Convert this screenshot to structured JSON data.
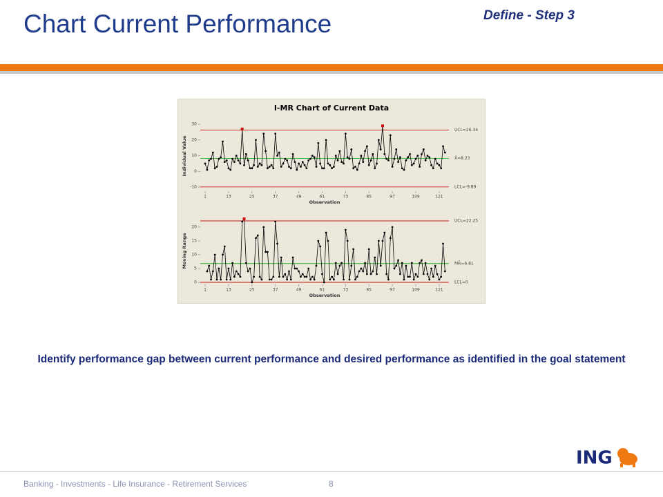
{
  "header": {
    "title": "Chart Current Performance",
    "step": "Define - Step 3"
  },
  "chart_data": [
    {
      "type": "line",
      "title": "I-MR Chart of Current Data",
      "ylabel": "Individual Value",
      "xlabel": "Observation",
      "x": [
        1,
        2,
        3,
        4,
        5,
        6,
        7,
        8,
        9,
        10,
        11,
        12,
        13,
        14,
        15,
        16,
        17,
        18,
        19,
        20,
        21,
        22,
        23,
        24,
        25,
        26,
        27,
        28,
        29,
        30,
        31,
        32,
        33,
        34,
        35,
        36,
        37,
        38,
        39,
        40,
        41,
        42,
        43,
        44,
        45,
        46,
        47,
        48,
        49,
        50,
        51,
        52,
        53,
        54,
        55,
        56,
        57,
        58,
        59,
        60,
        61,
        62,
        63,
        64,
        65,
        66,
        67,
        68,
        69,
        70,
        71,
        72,
        73,
        74,
        75,
        76,
        77,
        78,
        79,
        80,
        81,
        82,
        83,
        84,
        85,
        86,
        87,
        88,
        89,
        90,
        91,
        92,
        93,
        94,
        95,
        96,
        97,
        98,
        99,
        100,
        101,
        102,
        103,
        104,
        105,
        106,
        107,
        108,
        109,
        110,
        111,
        112,
        113,
        114,
        115,
        116,
        117,
        118,
        119,
        120,
        121,
        122,
        123,
        124
      ],
      "series": [
        {
          "color": "#000000",
          "values": [
            5,
            1,
            7,
            8,
            12,
            2,
            3,
            8,
            9,
            19,
            6,
            7,
            2,
            1,
            8,
            6,
            10,
            7,
            5,
            27,
            4,
            11,
            7,
            2,
            2,
            4,
            20,
            3,
            5,
            4,
            24,
            13,
            2,
            3,
            4,
            2,
            24,
            10,
            12,
            3,
            5,
            8,
            7,
            3,
            2,
            11,
            6,
            1,
            5,
            3,
            6,
            4,
            2,
            7,
            8,
            10,
            9,
            3,
            18,
            5,
            2,
            2,
            20,
            5,
            4,
            2,
            3,
            10,
            7,
            13,
            6,
            5,
            24,
            9,
            8,
            14,
            2,
            3,
            1,
            5,
            10,
            6,
            13,
            16,
            4,
            7,
            11,
            2,
            5,
            20,
            14,
            29,
            11,
            8,
            7,
            23,
            3,
            8,
            14,
            6,
            9,
            2,
            1,
            7,
            9,
            11,
            4,
            5,
            8,
            10,
            3,
            11,
            14,
            7,
            10,
            9,
            4,
            2,
            8,
            5,
            4,
            2,
            16,
            12
          ]
        }
      ],
      "xlim": [
        -1.5,
        126
      ],
      "xticks": [
        1,
        13,
        25,
        37,
        49,
        61,
        73,
        85,
        97,
        109,
        121
      ],
      "ylim": [
        -12.6,
        32.2
      ],
      "yticks": [
        -10,
        0,
        10,
        20,
        30
      ],
      "control_lines": [
        {
          "label": "UCL=26.34",
          "value": 26.34,
          "color": "#d01010"
        },
        {
          "label": "X̄=8.23",
          "value": 8.23,
          "color": "#20b020"
        },
        {
          "label": "LCL=-9.89",
          "value": -9.89,
          "color": "#d01010"
        }
      ]
    },
    {
      "type": "line",
      "ylabel": "Moving Range",
      "xlabel": "Observation",
      "x": [
        1,
        2,
        3,
        4,
        5,
        6,
        7,
        8,
        9,
        10,
        11,
        12,
        13,
        14,
        15,
        16,
        17,
        18,
        19,
        20,
        21,
        22,
        23,
        24,
        25,
        26,
        27,
        28,
        29,
        30,
        31,
        32,
        33,
        34,
        35,
        36,
        37,
        38,
        39,
        40,
        41,
        42,
        43,
        44,
        45,
        46,
        47,
        48,
        49,
        50,
        51,
        52,
        53,
        54,
        55,
        56,
        57,
        58,
        59,
        60,
        61,
        62,
        63,
        64,
        65,
        66,
        67,
        68,
        69,
        70,
        71,
        72,
        73,
        74,
        75,
        76,
        77,
        78,
        79,
        80,
        81,
        82,
        83,
        84,
        85,
        86,
        87,
        88,
        89,
        90,
        91,
        92,
        93,
        94,
        95,
        96,
        97,
        98,
        99,
        100,
        101,
        102,
        103,
        104,
        105,
        106,
        107,
        108,
        109,
        110,
        111,
        112,
        113,
        114,
        115,
        116,
        117,
        118,
        119,
        120,
        121,
        122,
        123,
        124
      ],
      "series": [
        {
          "color": "#000000",
          "values": [
            null,
            4,
            6,
            1,
            4,
            10,
            1,
            5,
            1,
            10,
            13,
            1,
            5,
            1,
            7,
            2,
            4,
            3,
            2,
            22,
            23,
            7,
            4,
            5,
            0,
            2,
            16,
            17,
            2,
            1,
            20,
            11,
            11,
            1,
            1,
            2,
            22,
            14,
            2,
            9,
            2,
            3,
            1,
            4,
            1,
            9,
            5,
            5,
            4,
            2,
            3,
            2,
            2,
            5,
            1,
            2,
            1,
            6,
            15,
            13,
            3,
            0,
            18,
            15,
            1,
            2,
            1,
            7,
            3,
            6,
            7,
            1,
            19,
            15,
            1,
            6,
            12,
            1,
            2,
            4,
            5,
            4,
            7,
            3,
            12,
            3,
            4,
            9,
            3,
            15,
            6,
            15,
            18,
            3,
            1,
            16,
            20,
            5,
            6,
            8,
            3,
            7,
            1,
            6,
            2,
            2,
            7,
            1,
            3,
            2,
            7,
            8,
            3,
            7,
            3,
            1,
            5,
            2,
            6,
            3,
            1,
            2,
            14,
            4
          ]
        }
      ],
      "xlim": [
        -1.5,
        126
      ],
      "xticks": [
        1,
        13,
        25,
        37,
        49,
        61,
        73,
        85,
        97,
        109,
        121
      ],
      "ylim": [
        -0.75,
        23.5
      ],
      "yticks": [
        0,
        5,
        10,
        15,
        20
      ],
      "control_lines": [
        {
          "label": "UCL=22.25",
          "value": 22.25,
          "color": "#d01010"
        },
        {
          "label": "MR̄=6.81",
          "value": 6.81,
          "color": "#20b020"
        },
        {
          "label": "LCL=0",
          "value": 0,
          "color": "#d01010"
        }
      ]
    }
  ],
  "body": "Identify performance gap between current performance and desired performance as identified in the goal statement",
  "footer": {
    "text": "Banking - Investments - Life Insurance - Retirement Services",
    "page": "8"
  },
  "logo": "ING"
}
